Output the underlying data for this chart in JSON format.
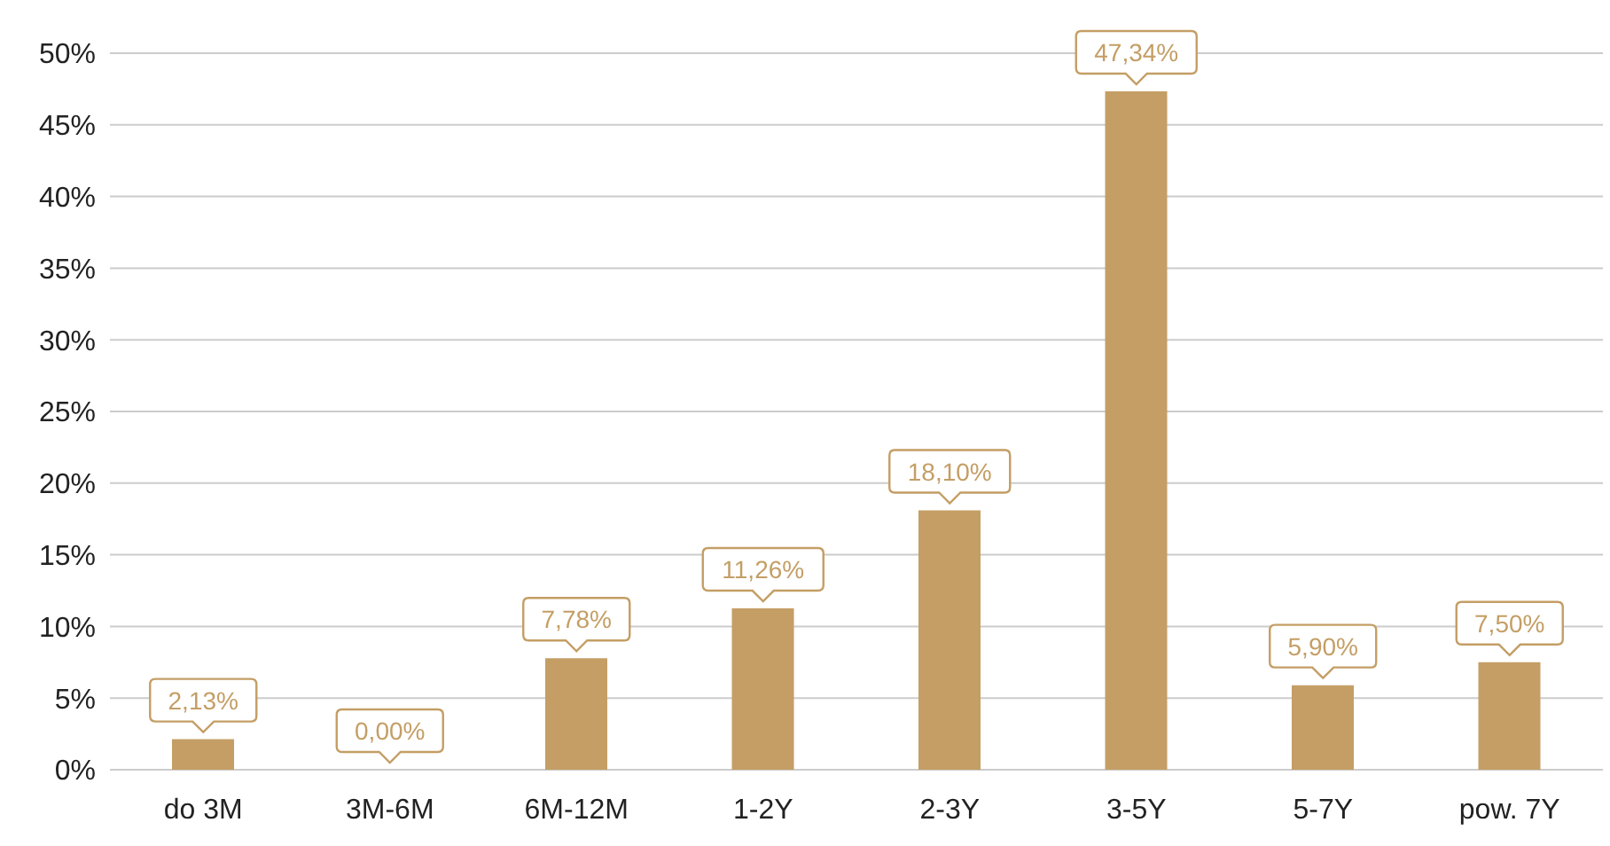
{
  "chart_data": {
    "type": "bar",
    "categories": [
      "do 3M",
      "3M-6M",
      "6M-12M",
      "1-2Y",
      "2-3Y",
      "3-5Y",
      "5-7Y",
      "pow. 7Y"
    ],
    "values": [
      2.13,
      0,
      7.78,
      11.26,
      18.1,
      47.34,
      5.9,
      7.5
    ],
    "value_labels": [
      "2,13%",
      "0,00%",
      "7,78%",
      "11,26%",
      "18,10%",
      "47,34%",
      "5,90%",
      "7,50%"
    ],
    "color": "#c49e65",
    "ylim": [
      0,
      50
    ],
    "yticks": [
      {
        "value": 0,
        "label": "0%"
      },
      {
        "value": 5,
        "label": "5%"
      },
      {
        "value": 10,
        "label": "10%"
      },
      {
        "value": 15,
        "label": "15%"
      },
      {
        "value": 20,
        "label": "20%"
      },
      {
        "value": 25,
        "label": "25%"
      },
      {
        "value": 30,
        "label": "30%"
      },
      {
        "value": 35,
        "label": "35%"
      },
      {
        "value": 40,
        "label": "40%"
      },
      {
        "value": 45,
        "label": "45%"
      },
      {
        "value": 50,
        "label": "50%"
      }
    ],
    "grid": "y",
    "legend": false
  }
}
